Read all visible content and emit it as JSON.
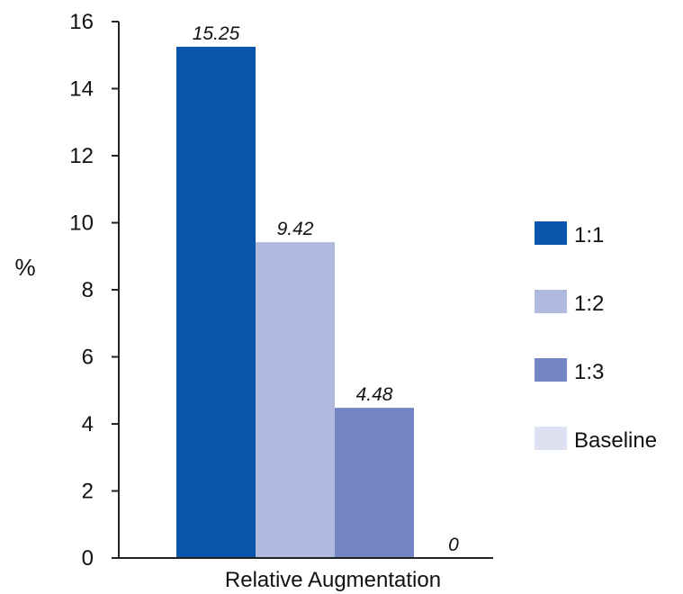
{
  "chart_data": {
    "type": "bar",
    "title": "",
    "xlabel": "",
    "ylabel": "%",
    "ylim": [
      0,
      16
    ],
    "yticks": [
      0,
      2,
      4,
      6,
      8,
      10,
      12,
      14,
      16
    ],
    "categories": [
      "Relative Augmentation"
    ],
    "series": [
      {
        "name": "1:1",
        "values": [
          15.25
        ],
        "label": "15.25",
        "color": "#0a56ad"
      },
      {
        "name": "1:2",
        "values": [
          9.42
        ],
        "label": "9.42",
        "color": "#b0badf"
      },
      {
        "name": "1:3",
        "values": [
          4.48
        ],
        "label": "4.48",
        "color": "#7385c4"
      },
      {
        "name": "Baseline",
        "values": [
          0
        ],
        "label": "0",
        "color": "#dde1f2"
      }
    ],
    "grid": false,
    "legend_position": "right"
  }
}
